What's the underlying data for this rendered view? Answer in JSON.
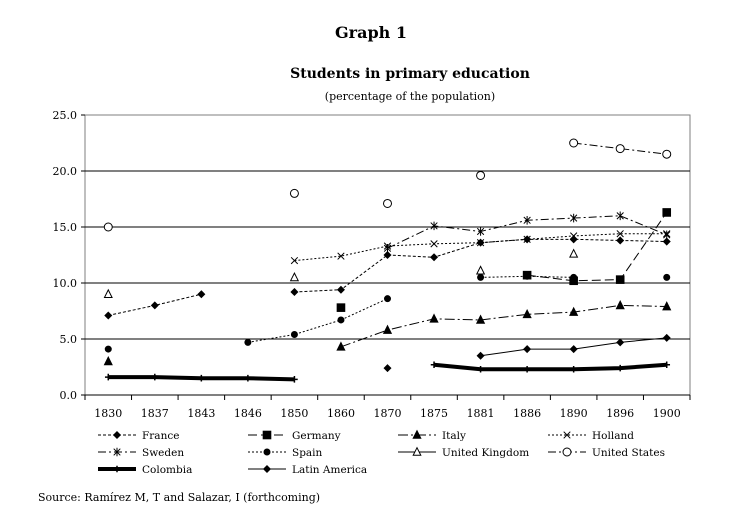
{
  "graph_label": "Graph 1",
  "source": "Source: Ramírez M, T and Salazar, I (forthcoming)",
  "chart_data": {
    "type": "line",
    "title": "Students in primary education",
    "subtitle": "(percentage of  the population)",
    "xlabel": "",
    "ylabel": "",
    "categories": [
      "1830",
      "1837",
      "1843",
      "1846",
      "1850",
      "1860",
      "1870",
      "1875",
      "1881",
      "1886",
      "1890",
      "1896",
      "1900"
    ],
    "ylim": [
      0,
      25
    ],
    "yticks": [
      "0.0",
      "5.0",
      "10.0",
      "15.0",
      "20.0",
      "25.0"
    ],
    "grid": true,
    "legend_position": "bottom",
    "series": [
      {
        "name": "France",
        "values": [
          7.1,
          8.0,
          9.0,
          null,
          9.2,
          9.4,
          12.5,
          12.3,
          13.6,
          13.9,
          13.9,
          13.8,
          13.7
        ]
      },
      {
        "name": "Germany",
        "values": [
          null,
          null,
          null,
          null,
          null,
          7.8,
          null,
          null,
          null,
          10.7,
          10.2,
          10.3,
          16.3
        ]
      },
      {
        "name": "Italy",
        "values": [
          3.0,
          null,
          null,
          null,
          null,
          4.3,
          5.8,
          6.8,
          6.7,
          7.2,
          7.4,
          8.0,
          7.9
        ]
      },
      {
        "name": "Holland",
        "values": [
          null,
          null,
          null,
          null,
          12.0,
          12.4,
          13.3,
          13.5,
          13.6,
          13.9,
          14.2,
          14.4,
          14.4
        ]
      },
      {
        "name": "Sweden",
        "values": [
          null,
          null,
          null,
          null,
          null,
          null,
          13.1,
          15.1,
          14.6,
          15.6,
          15.8,
          16.0,
          14.3
        ]
      },
      {
        "name": "Spain",
        "values": [
          4.1,
          null,
          null,
          4.7,
          5.4,
          6.7,
          8.6,
          null,
          10.5,
          10.6,
          10.5,
          null,
          10.5
        ]
      },
      {
        "name": "United Kingdom",
        "values": [
          9.0,
          null,
          null,
          null,
          10.5,
          null,
          null,
          null,
          11.1,
          null,
          12.6,
          null,
          null
        ]
      },
      {
        "name": "United States",
        "values": [
          15.0,
          null,
          null,
          null,
          18.0,
          null,
          17.1,
          null,
          19.6,
          null,
          22.5,
          22.0,
          21.5
        ]
      },
      {
        "name": "Colombia",
        "values": [
          1.6,
          1.6,
          1.5,
          1.5,
          1.4,
          null,
          null,
          2.7,
          2.3,
          2.3,
          2.3,
          2.4,
          2.7
        ]
      },
      {
        "name": "Latin America",
        "values": [
          null,
          null,
          null,
          null,
          null,
          null,
          2.4,
          null,
          3.5,
          4.1,
          4.1,
          4.7,
          5.1
        ]
      }
    ]
  },
  "colors": {
    "ink": "#000000",
    "background": "#ffffff"
  }
}
